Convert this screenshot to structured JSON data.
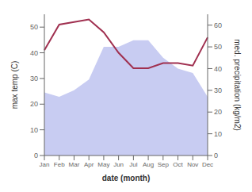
{
  "chart_data": {
    "type": "line",
    "categories": [
      "Jan",
      "Feb",
      "Mar",
      "Apr",
      "May",
      "Jun",
      "Jul",
      "Aug",
      "Sep",
      "Oct",
      "Nov",
      "Dec"
    ],
    "series": [
      {
        "type": "area",
        "axis": "y2",
        "color": "#c8ccf2",
        "values": [
          29,
          27,
          30,
          35,
          50,
          50,
          53,
          53,
          45,
          40,
          38,
          27
        ]
      },
      {
        "type": "line",
        "color": "#a03050",
        "values": [
          41,
          51,
          52,
          53,
          48,
          40,
          34,
          34,
          36,
          36,
          35,
          46
        ]
      }
    ],
    "xlabel": "date (month)",
    "ylabel": "max temp (C)",
    "y2label": "med. precipitation (kg/m2)",
    "ylim": [
      0,
      55
    ],
    "yticks": [
      0,
      10,
      20,
      30,
      40,
      50
    ],
    "y2lim": [
      0,
      65
    ],
    "y2ticks": [
      0,
      10,
      20,
      30,
      40,
      50,
      60
    ],
    "grid": false
  }
}
